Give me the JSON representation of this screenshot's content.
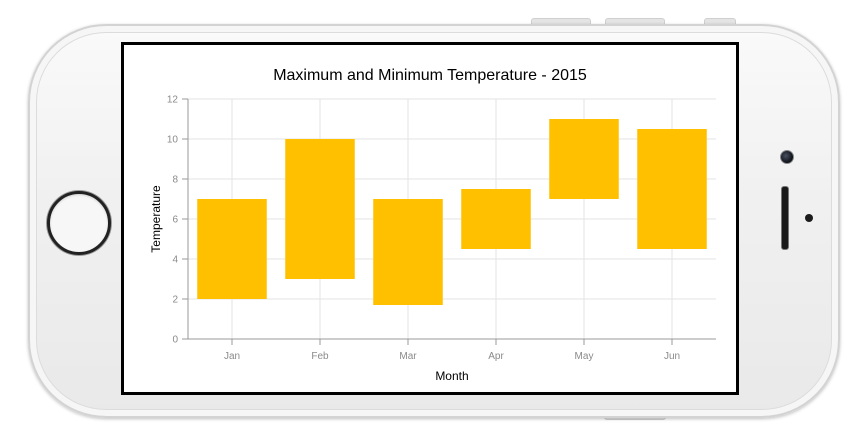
{
  "colors": {
    "bar": "#FFC000",
    "grid": "#e3e3e3",
    "axis": "#9a9a9a",
    "screen_bezel": "#000000"
  },
  "chart_data": {
    "type": "bar",
    "subtype": "range-column",
    "title": "Maximum and Minimum Temperature - 2015",
    "xlabel": "Month",
    "ylabel": "Temperature",
    "categories": [
      "Jan",
      "Feb",
      "Mar",
      "Apr",
      "May",
      "Jun"
    ],
    "series": [
      {
        "low": [
          2,
          3,
          1.7,
          4.5,
          7,
          4.5
        ],
        "high": [
          7,
          10,
          7,
          7.5,
          11,
          10.5
        ]
      }
    ],
    "ylim": [
      0,
      12
    ],
    "yticks": [
      0,
      2,
      4,
      6,
      8,
      10,
      12
    ],
    "grid": true,
    "legend": "none"
  }
}
